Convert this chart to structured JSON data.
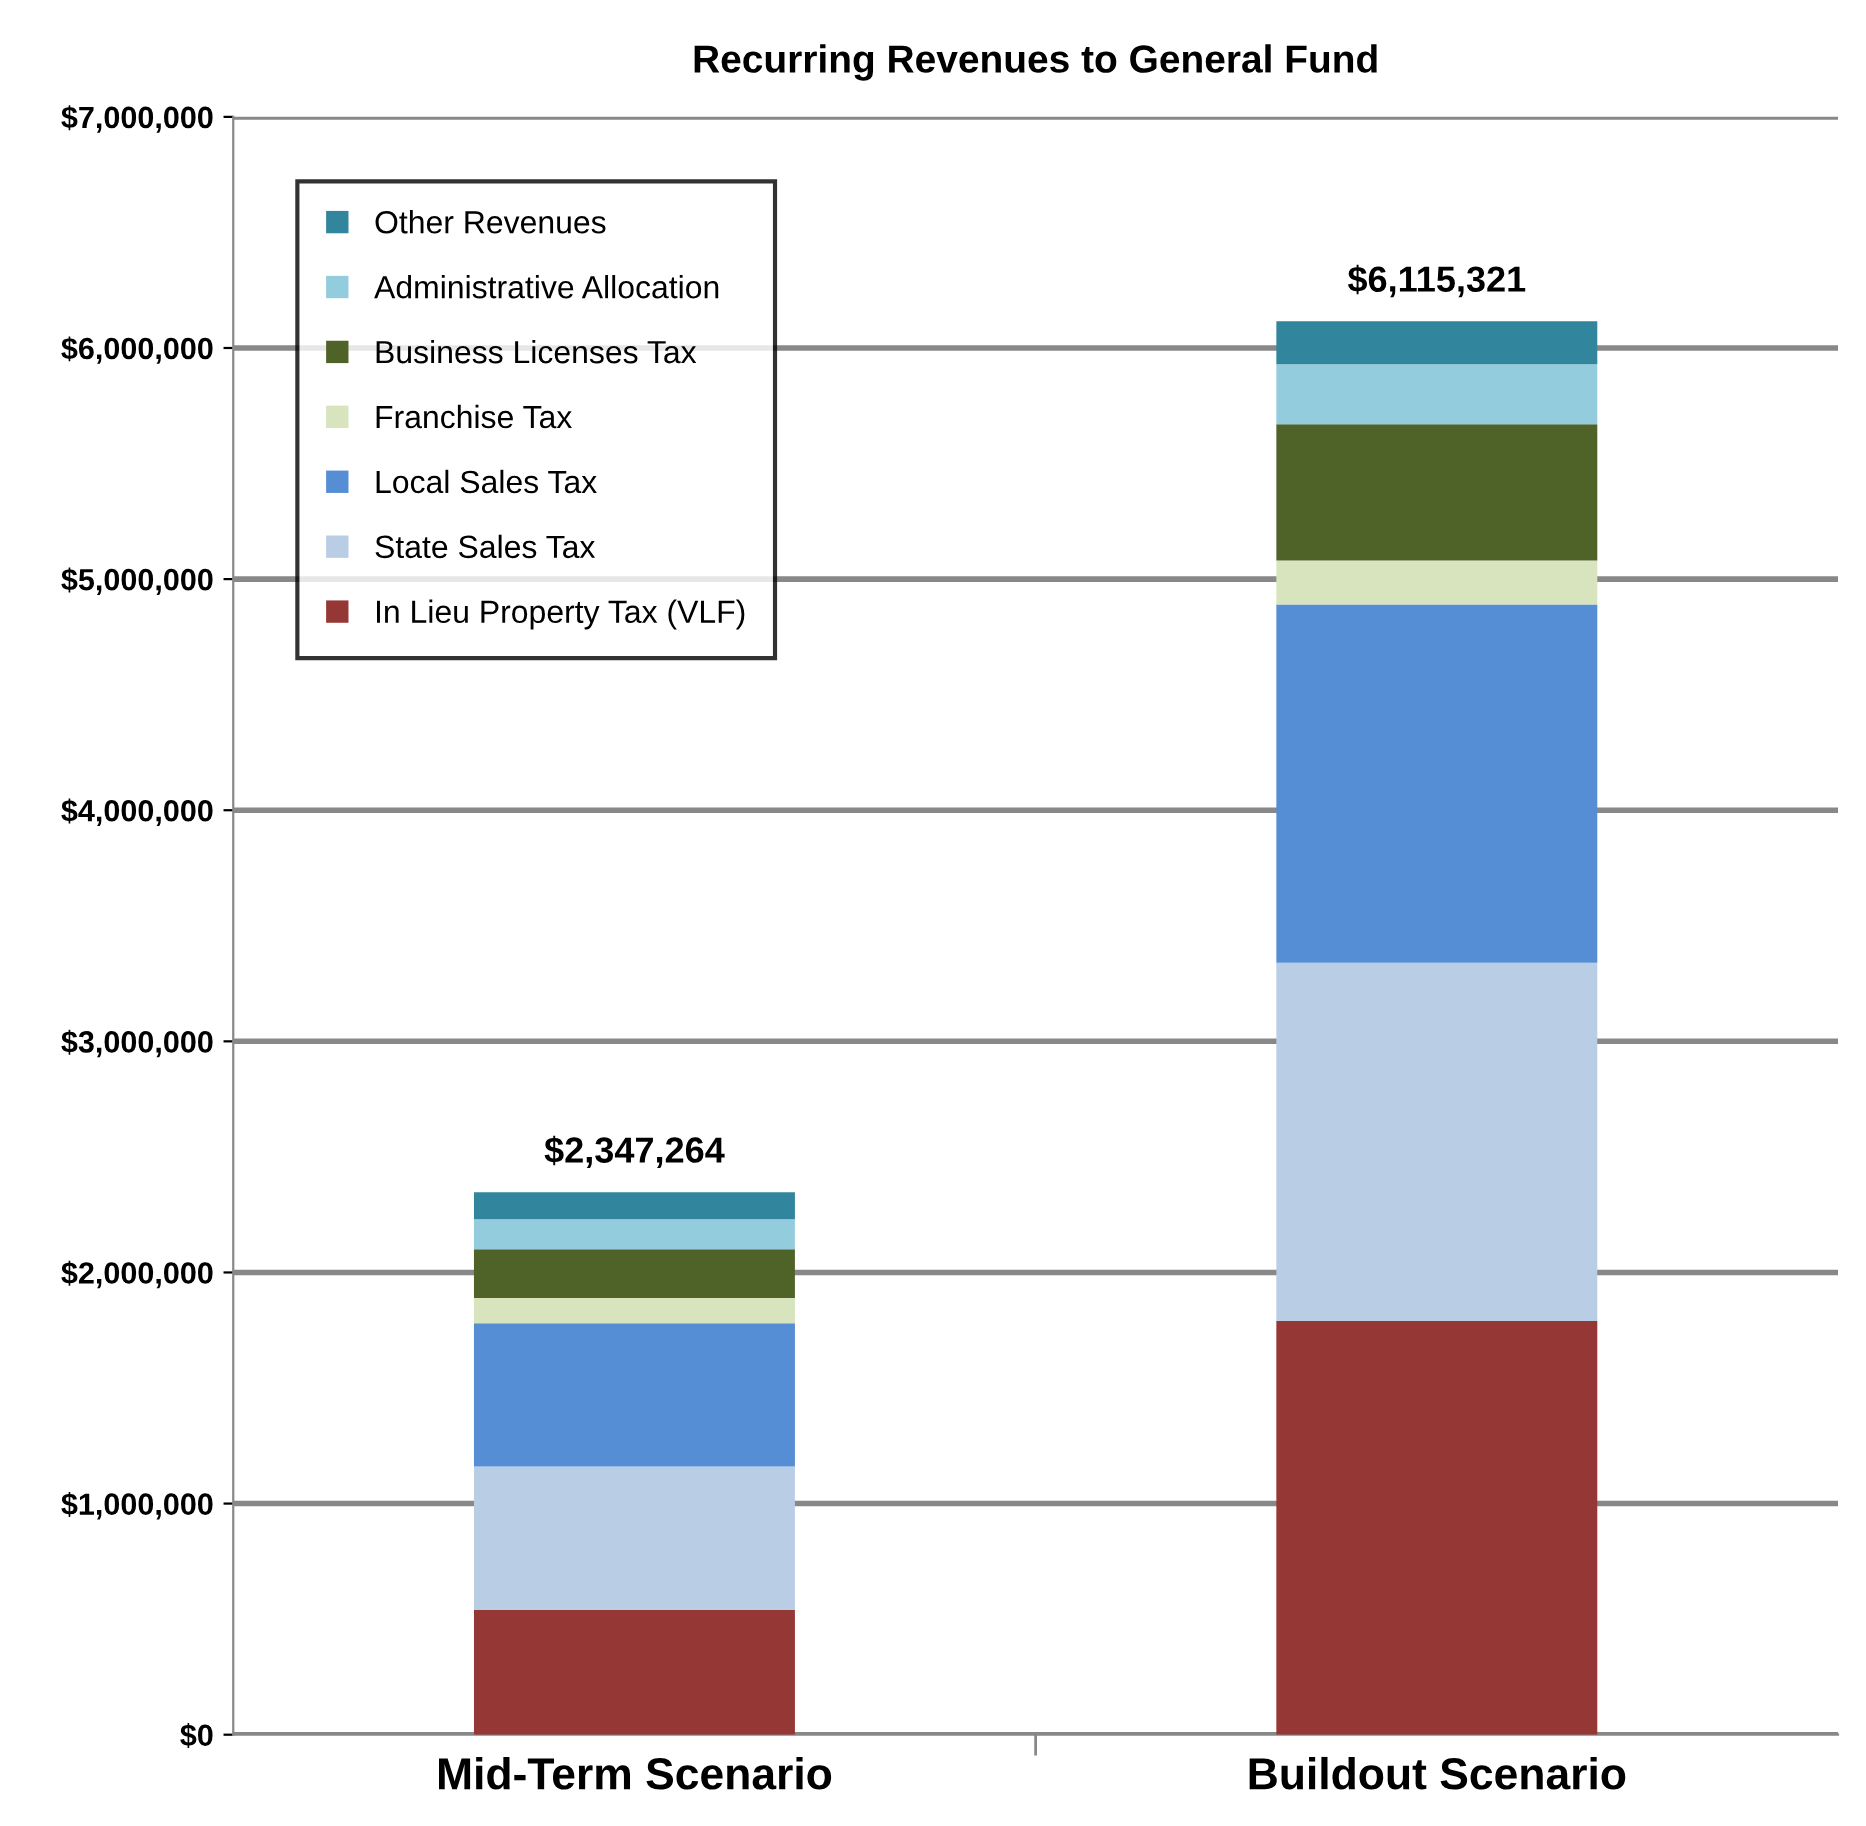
{
  "chart_data": {
    "type": "bar",
    "stacked": true,
    "title": "Recurring Revenues to General Fund",
    "categories": [
      "Mid-Term Scenario",
      "Buildout Scenario"
    ],
    "series": [
      {
        "name": "In Lieu Property Tax (VLF)",
        "color": "#953735",
        "values": [
          540000,
          1790000
        ]
      },
      {
        "name": "State Sales Tax",
        "color": "#b9cde5",
        "values": [
          620000,
          1550000
        ]
      },
      {
        "name": "Local Sales Tax",
        "color": "#558ed5",
        "values": [
          620000,
          1550000
        ]
      },
      {
        "name": "Franchise Tax",
        "color": "#d7e4bd",
        "values": [
          110000,
          190000
        ]
      },
      {
        "name": "Business Licenses Tax",
        "color": "#4f6228",
        "values": [
          210000,
          590000
        ]
      },
      {
        "name": "Administrative Allocation",
        "color": "#93cddd",
        "values": [
          130000,
          260000
        ]
      },
      {
        "name": "Other Revenues",
        "color": "#31859c",
        "values": [
          117264,
          185321
        ]
      }
    ],
    "totals": [
      "$2,347,264",
      "$6,115,321"
    ],
    "ylim": [
      0,
      7000000
    ],
    "yticks": [
      {
        "value": 0,
        "label": "$0"
      },
      {
        "value": 1000000,
        "label": "$1,000,000"
      },
      {
        "value": 2000000,
        "label": "$2,000,000"
      },
      {
        "value": 3000000,
        "label": "$3,000,000"
      },
      {
        "value": 4000000,
        "label": "$4,000,000"
      },
      {
        "value": 5000000,
        "label": "$5,000,000"
      },
      {
        "value": 6000000,
        "label": "$6,000,000"
      },
      {
        "value": 7000000,
        "label": "$7,000,000"
      }
    ],
    "grid": "y",
    "legend": "top left"
  }
}
